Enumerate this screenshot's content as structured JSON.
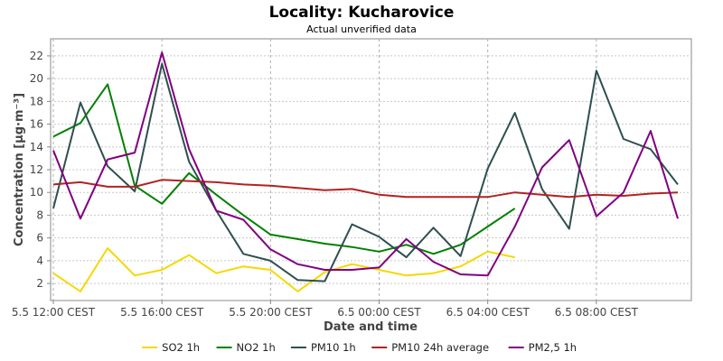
{
  "chart_data": {
    "type": "line",
    "title": "Locality: Kucharovice",
    "subtitle": "Actual unverified data",
    "xlabel": "Date and time",
    "ylabel": "Concentration [µg·m⁻³]",
    "ylim": [
      0.5,
      23.5
    ],
    "xlim": [
      11.9,
      35.5
    ],
    "yticks": [
      2,
      4,
      6,
      8,
      10,
      12,
      14,
      16,
      18,
      20,
      22
    ],
    "xticks": [
      {
        "hour": 12,
        "label": "5.5 12:00 CEST"
      },
      {
        "hour": 16,
        "label": "5.5 16:00 CEST"
      },
      {
        "hour": 20,
        "label": "5.5 20:00 CEST"
      },
      {
        "hour": 24,
        "label": "6.5 00:00 CEST"
      },
      {
        "hour": 28,
        "label": "6.5 04:00 CEST"
      },
      {
        "hour": 32,
        "label": "6.5 08:00 CEST"
      }
    ],
    "grid": true,
    "legend": "bottom",
    "series": [
      {
        "name": "SO2 1h",
        "color": "#f5d800",
        "x": [
          12,
          13,
          14,
          15,
          16,
          17,
          18,
          19,
          20,
          21,
          22,
          23,
          24,
          25,
          26,
          27,
          28,
          29
        ],
        "y": [
          2.9,
          1.3,
          5.1,
          2.7,
          3.2,
          4.5,
          2.9,
          3.5,
          3.2,
          1.3,
          3.0,
          3.7,
          3.2,
          2.7,
          2.9,
          3.5,
          4.8,
          4.3
        ]
      },
      {
        "name": "NO2 1h",
        "color": "#008000",
        "x": [
          12,
          13,
          14,
          15,
          16,
          17,
          18,
          19,
          20,
          21,
          22,
          23,
          24,
          25,
          26,
          27,
          28,
          29
        ],
        "y": [
          14.9,
          16.1,
          19.5,
          10.6,
          9.0,
          11.7,
          9.8,
          8.0,
          6.3,
          5.9,
          5.5,
          5.2,
          4.8,
          5.4,
          4.6,
          5.4,
          7.0,
          8.6
        ]
      },
      {
        "name": "PM10 1h",
        "color": "#2f4f4f",
        "x": [
          12,
          13,
          14,
          15,
          16,
          17,
          18,
          19,
          20,
          21,
          22,
          23,
          24,
          25,
          26,
          27,
          28,
          29,
          30,
          31,
          32,
          33,
          34,
          35
        ],
        "y": [
          8.6,
          17.9,
          12.3,
          10.1,
          21.3,
          12.7,
          8.4,
          4.6,
          4.0,
          2.3,
          2.2,
          7.2,
          6.1,
          4.3,
          6.9,
          4.4,
          12.1,
          17.0,
          10.3,
          6.8,
          20.7,
          14.7,
          13.8,
          10.7
        ]
      },
      {
        "name": "PM10 24h average",
        "color": "#b22222",
        "x": [
          12,
          13,
          14,
          15,
          16,
          17,
          18,
          19,
          20,
          21,
          22,
          23,
          24,
          25,
          26,
          27,
          28,
          29,
          30,
          31,
          32,
          33,
          34,
          35
        ],
        "y": [
          10.7,
          10.9,
          10.5,
          10.5,
          11.1,
          11.0,
          10.9,
          10.7,
          10.6,
          10.4,
          10.2,
          10.3,
          9.8,
          9.6,
          9.6,
          9.6,
          9.6,
          10.0,
          9.8,
          9.6,
          9.8,
          9.7,
          9.9,
          10.0
        ]
      },
      {
        "name": "PM2,5 1h",
        "color": "#800080",
        "x": [
          12,
          13,
          14,
          15,
          16,
          17,
          18,
          19,
          20,
          21,
          22,
          23,
          24,
          25,
          26,
          27,
          28,
          29,
          30,
          31,
          32,
          33,
          34,
          35
        ],
        "y": [
          13.7,
          7.7,
          12.9,
          13.5,
          22.3,
          13.8,
          8.4,
          7.6,
          5.0,
          3.7,
          3.2,
          3.2,
          3.4,
          5.9,
          3.9,
          2.8,
          2.7,
          7.0,
          12.2,
          14.6,
          7.9,
          10.0,
          15.4,
          7.7
        ]
      }
    ]
  }
}
